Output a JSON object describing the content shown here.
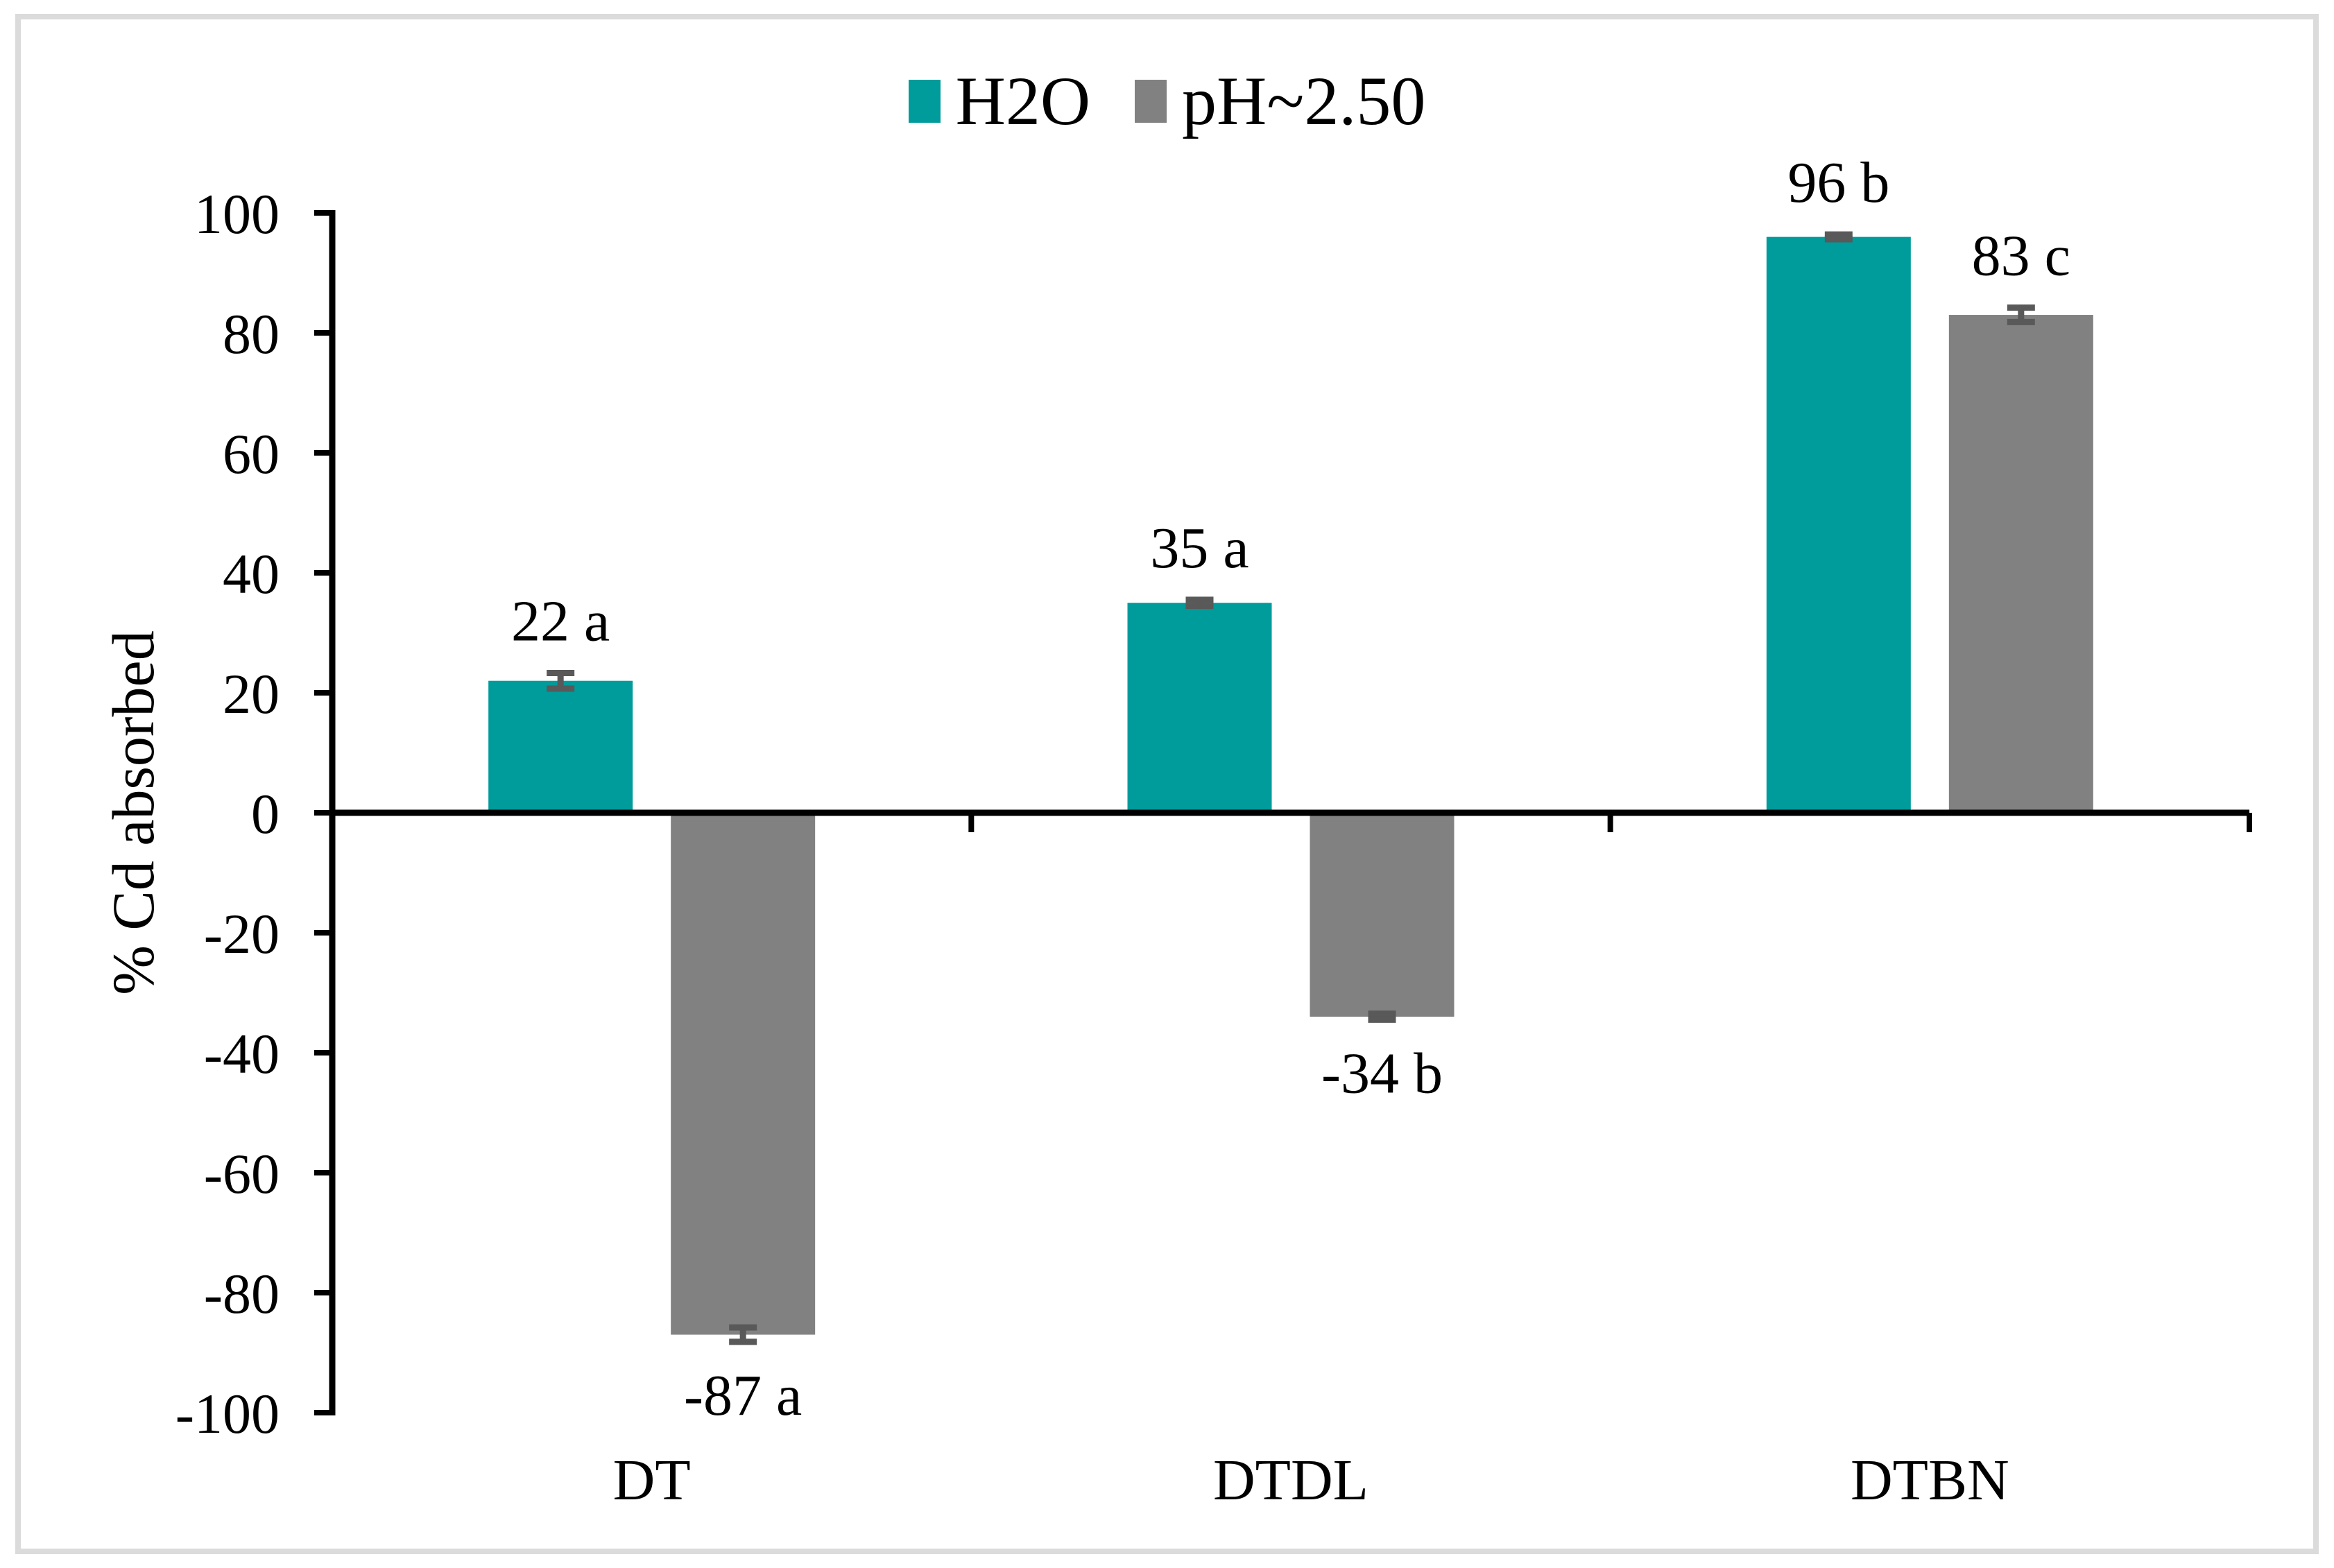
{
  "chart_frame": {
    "border_color": "#DBDBDB",
    "background": "#FFFFFF"
  },
  "legend": {
    "position": "top-center",
    "items": [
      {
        "label": "H2O",
        "color": "#009B9B"
      },
      {
        "label": "pH~2.50",
        "color": "#818181"
      }
    ]
  },
  "chart_data": {
    "type": "bar",
    "title": "",
    "categories": [
      "DT",
      "DTDL",
      "DTBN"
    ],
    "series": [
      {
        "name": "H2O",
        "color": "#009B9B",
        "values": [
          22,
          35,
          96
        ],
        "errors": [
          1.3,
          0.5,
          0.4
        ],
        "labels": [
          "22 a",
          "35 a",
          "96 b"
        ]
      },
      {
        "name": "pH~2.50",
        "color": "#818181",
        "values": [
          -87,
          -34,
          83
        ],
        "errors": [
          1.2,
          0.5,
          1.2
        ],
        "labels": [
          "-87 a",
          "-34 b",
          "83 c"
        ]
      }
    ],
    "xlabel": "",
    "ylabel": "% Cd absorbed",
    "ylim": [
      -100,
      100
    ],
    "yticks": [
      100,
      80,
      60,
      40,
      20,
      0,
      -20,
      -40,
      -60,
      -80,
      -100
    ],
    "grid": false,
    "legend_position": "top",
    "axis_color": "#000000",
    "error_bar_color": "#595959"
  }
}
